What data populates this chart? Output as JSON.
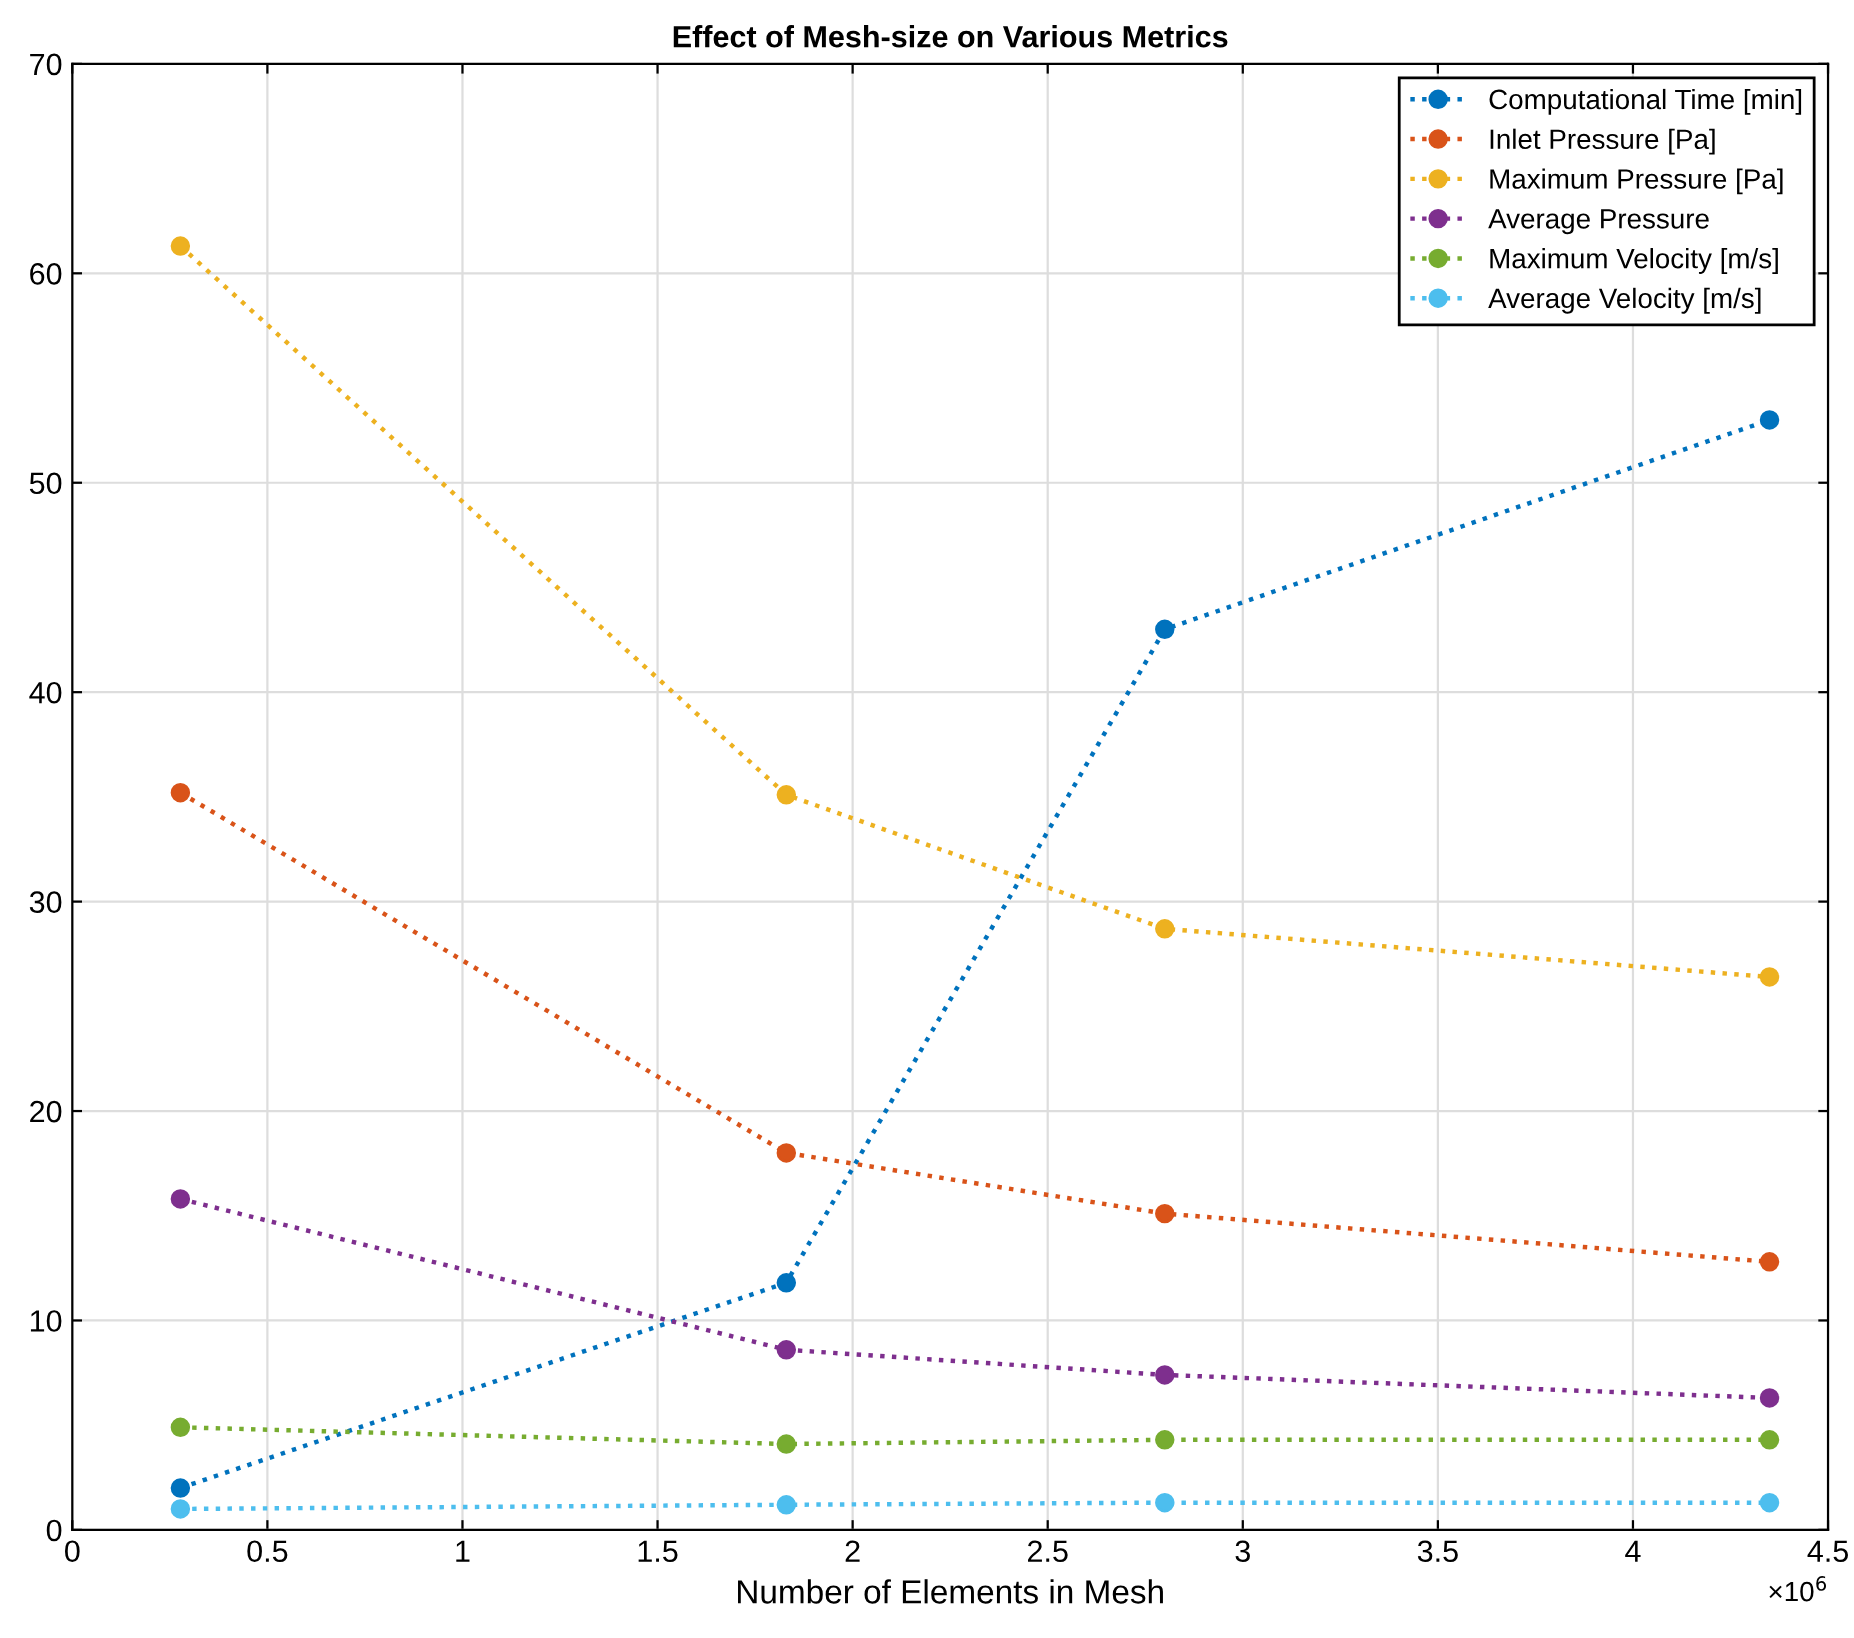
{
  "chart_data": {
    "type": "line",
    "title": "Effect of Mesh-size on Various Metrics",
    "xlabel": "Number of Elements in Mesh",
    "x": [
      0.277,
      1.83,
      2.8,
      4.35
    ],
    "series": [
      {
        "name": "Computational Time [min]",
        "color": "#0072bd",
        "values": [
          2.0,
          11.8,
          43.0,
          53.0
        ]
      },
      {
        "name": "Inlet Pressure [Pa]",
        "color": "#d95319",
        "values": [
          35.2,
          18.0,
          15.1,
          12.8
        ]
      },
      {
        "name": "Maximum Pressure [Pa]",
        "color": "#edb120",
        "values": [
          61.3,
          35.1,
          28.7,
          26.4
        ]
      },
      {
        "name": "Average Pressure",
        "color": "#7e2f8e",
        "values": [
          15.8,
          8.6,
          7.4,
          6.3
        ]
      },
      {
        "name": "Maximum Velocity [m/s]",
        "color": "#77ac30",
        "values": [
          4.9,
          4.1,
          4.3,
          4.3
        ]
      },
      {
        "name": "Average Velocity [m/s]",
        "color": "#4dbeee",
        "values": [
          1.0,
          1.2,
          1.3,
          1.3
        ]
      }
    ],
    "xlim": [
      0,
      4.5
    ],
    "xticks": [
      0,
      0.5,
      1,
      1.5,
      2,
      2.5,
      3,
      3.5,
      4,
      4.5
    ],
    "ylim": [
      0,
      70
    ],
    "yticks": [
      0,
      10,
      20,
      30,
      40,
      50,
      60,
      70
    ],
    "annotations": [
      "×10$^{6}$"
    ],
    "grid": true,
    "legend": "top right",
    "marker": "circle",
    "line_style": "dotted"
  }
}
